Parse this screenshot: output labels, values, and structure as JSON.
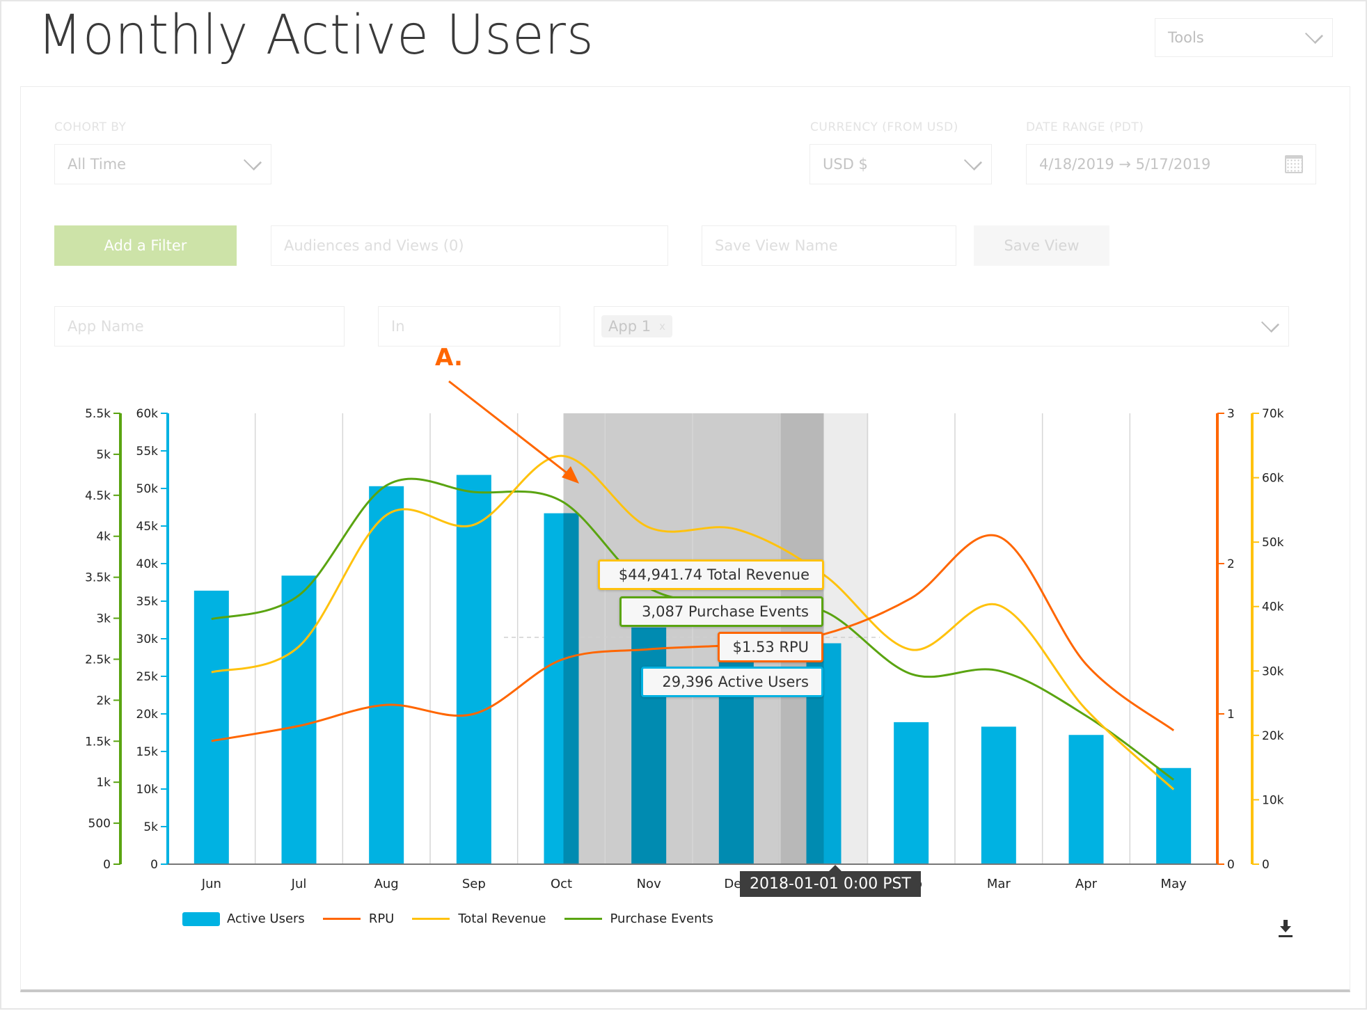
{
  "page": {
    "title": "Monthly Active Users",
    "tools_label": "Tools"
  },
  "filters": {
    "cohort_label": "COHORT BY",
    "cohort_value": "All Time",
    "currency_label": "CURRENCY (FROM USD)",
    "currency_value": "USD $",
    "date_range_label": "DATE RANGE (PDT)",
    "date_range_value": "4/18/2019 → 5/17/2019",
    "add_filter_label": "Add a Filter",
    "audiences_placeholder": "Audiences and Views (0)",
    "save_view_name_placeholder": "Save View Name",
    "save_view_label": "Save View",
    "app_name_placeholder": "App Name",
    "operator_placeholder": "In",
    "app_tag": "App 1",
    "app_tag_remove": "x"
  },
  "annotation": {
    "label": "A."
  },
  "colors": {
    "active_users": "#00b2e2",
    "active_users_selected": "#008bb1",
    "rpu": "#ff6600",
    "total_revenue": "#ffc20e",
    "purchase_events": "#5aa411"
  },
  "tooltip": {
    "date": "2018-01-01 0:00 PST",
    "total_revenue": "$44,941.74 Total Revenue",
    "purchase_events": "3,087 Purchase Events",
    "rpu": "$1.53 RPU",
    "active_users": "29,396 Active Users"
  },
  "chart_data": {
    "type": "bar",
    "title": "Monthly Active Users",
    "categories": [
      "Jun",
      "Jul",
      "Aug",
      "Sep",
      "Oct",
      "Nov",
      "Dec",
      "Jan",
      "Feb",
      "Mar",
      "Apr",
      "May"
    ],
    "x_visible_labels": [
      "Jun",
      "Jul",
      "Aug",
      "Sep",
      "Oct",
      "Nov",
      "Dec",
      "",
      "Feb",
      "Mar",
      "Apr",
      "May"
    ],
    "series": [
      {
        "name": "Active Users",
        "type": "bar",
        "axis": "left-inner",
        "color": "#00b2e2",
        "values": [
          36400,
          38400,
          50300,
          51800,
          46700,
          31500,
          30200,
          29396,
          18900,
          18300,
          17200,
          12800
        ]
      },
      {
        "name": "RPU",
        "type": "line",
        "axis": "right-inner",
        "color": "#ff6600",
        "values": [
          0.82,
          0.92,
          1.06,
          1.0,
          1.36,
          1.43,
          1.46,
          1.53,
          1.77,
          2.18,
          1.33,
          0.89
        ]
      },
      {
        "name": "Total Revenue",
        "type": "line",
        "axis": "right-outer",
        "color": "#ffc20e",
        "values": [
          29800,
          33800,
          54200,
          52700,
          63400,
          52300,
          52000,
          44941.74,
          33300,
          40200,
          24000,
          11600
        ]
      },
      {
        "name": "Purchase Events",
        "type": "line",
        "axis": "left-outer",
        "color": "#5aa411",
        "values": [
          2990,
          3280,
          4620,
          4540,
          4430,
          3370,
          3190,
          3087,
          2320,
          2360,
          1810,
          1030
        ]
      }
    ],
    "axes": {
      "left-outer": {
        "range": [
          0,
          5500
        ],
        "ticks": [
          "0",
          "500",
          "1k",
          "1.5k",
          "2k",
          "2.5k",
          "3k",
          "3.5k",
          "4k",
          "4.5k",
          "5k",
          "5.5k"
        ],
        "color": "#5aa411"
      },
      "left-inner": {
        "range": [
          0,
          60000
        ],
        "ticks": [
          "0",
          "5k",
          "10k",
          "15k",
          "20k",
          "25k",
          "30k",
          "35k",
          "40k",
          "45k",
          "50k",
          "55k",
          "60k"
        ],
        "color": "#00b2e2"
      },
      "right-inner": {
        "range": [
          0,
          3
        ],
        "ticks": [
          "0",
          "1",
          "2",
          "3"
        ],
        "color": "#ff6600"
      },
      "right-outer": {
        "range": [
          0,
          70000
        ],
        "ticks": [
          "0",
          "10k",
          "20k",
          "30k",
          "40k",
          "50k",
          "60k",
          "70k"
        ],
        "color": "#ffc20e"
      }
    },
    "selection": {
      "from": "Oct",
      "to": "Jan",
      "hovered": "Jan"
    },
    "legend": [
      "Active Users",
      "RPU",
      "Total Revenue",
      "Purchase Events"
    ],
    "legend_position": "bottom-left",
    "grid": "vertical"
  }
}
